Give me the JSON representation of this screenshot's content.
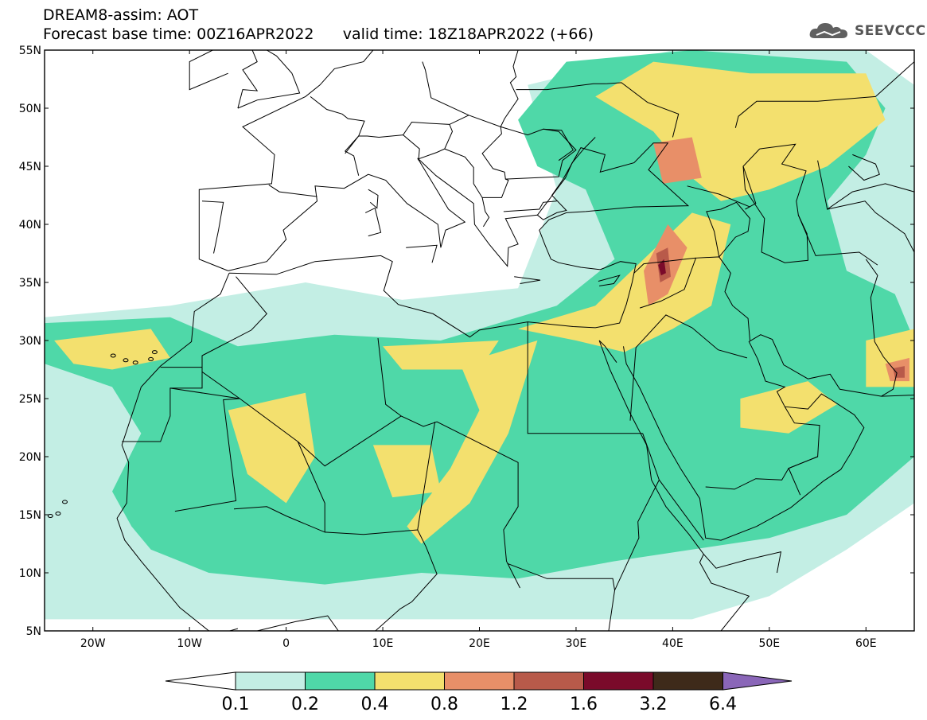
{
  "header": {
    "line1": "DREAM8-assim: AOT",
    "line2_left": "Forecast base time: 00Z16APR2022",
    "line2_right": "valid time: 18Z18APR2022 (+66)"
  },
  "logo": {
    "text": "SEEVCCC",
    "icon": "cloud-logo-icon"
  },
  "map": {
    "lon_range": [
      -25,
      65
    ],
    "lat_range": [
      5,
      55
    ],
    "lat_labels": [
      "55N",
      "50N",
      "45N",
      "40N",
      "35N",
      "30N",
      "25N",
      "20N",
      "15N",
      "10N",
      "5N"
    ],
    "lon_labels": [
      "20W",
      "10W",
      "0",
      "10E",
      "20E",
      "30E",
      "40E",
      "50E",
      "60E"
    ]
  },
  "colorbar": {
    "labels": [
      "0.1",
      "0.2",
      "0.4",
      "0.8",
      "1.2",
      "1.6",
      "3.2",
      "6.4"
    ],
    "colors": [
      "#ffffff",
      "#c3eee4",
      "#4fd8a8",
      "#f3e06e",
      "#e88f68",
      "#b85a4a",
      "#7a0a2a",
      "#3e2a1a",
      "#8a66b8"
    ]
  },
  "fields": {
    "class_colors": [
      "#c3eee4",
      "#4fd8a8",
      "#f3e06e",
      "#e88f68",
      "#b85a4a",
      "#7a0a2a"
    ]
  }
}
